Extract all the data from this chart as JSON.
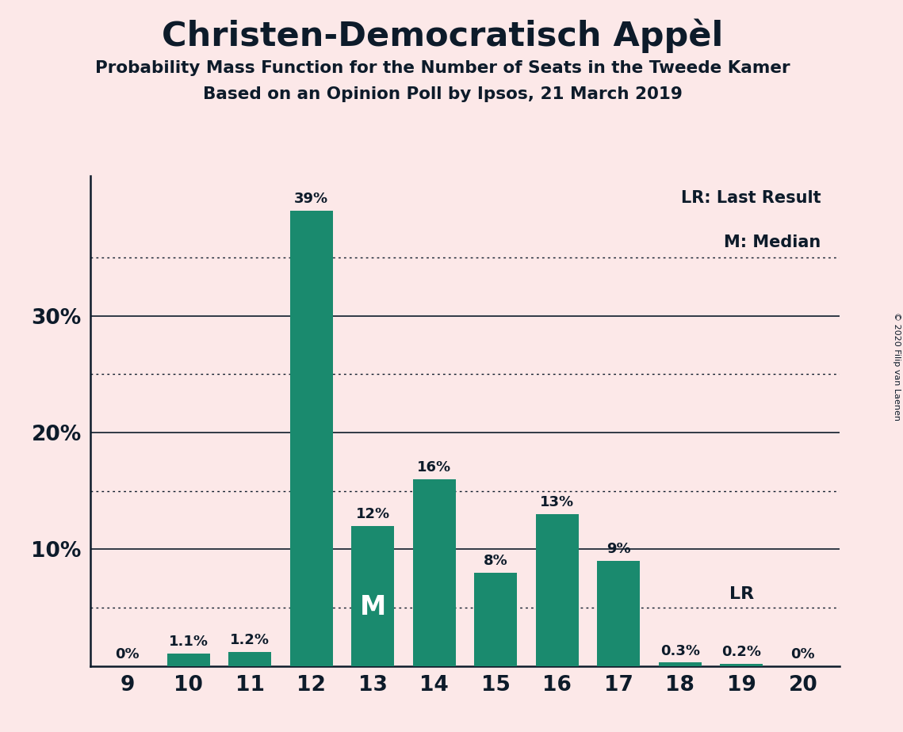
{
  "title": "Christen-Democratisch Appèl",
  "subtitle1": "Probability Mass Function for the Number of Seats in the Tweede Kamer",
  "subtitle2": "Based on an Opinion Poll by Ipsos, 21 March 2019",
  "copyright": "© 2020 Filip van Laenen",
  "seats": [
    9,
    10,
    11,
    12,
    13,
    14,
    15,
    16,
    17,
    18,
    19,
    20
  ],
  "probabilities": [
    0.0,
    1.1,
    1.2,
    39.0,
    12.0,
    16.0,
    8.0,
    13.0,
    9.0,
    0.3,
    0.2,
    0.0
  ],
  "bar_color": "#1a8a6e",
  "background_color": "#fce8e8",
  "text_color": "#0d1b2a",
  "median_seat": 13,
  "last_result_seat": 19,
  "yticks": [
    10,
    20,
    30
  ],
  "dotted_lines": [
    5,
    15,
    25,
    35
  ],
  "legend_lr": "LR: Last Result",
  "legend_m": "M: Median",
  "bar_labels": [
    "0%",
    "1.1%",
    "1.2%",
    "39%",
    "12%",
    "16%",
    "8%",
    "13%",
    "9%",
    "0.3%",
    "0.2%",
    "0%"
  ],
  "ymax": 42
}
